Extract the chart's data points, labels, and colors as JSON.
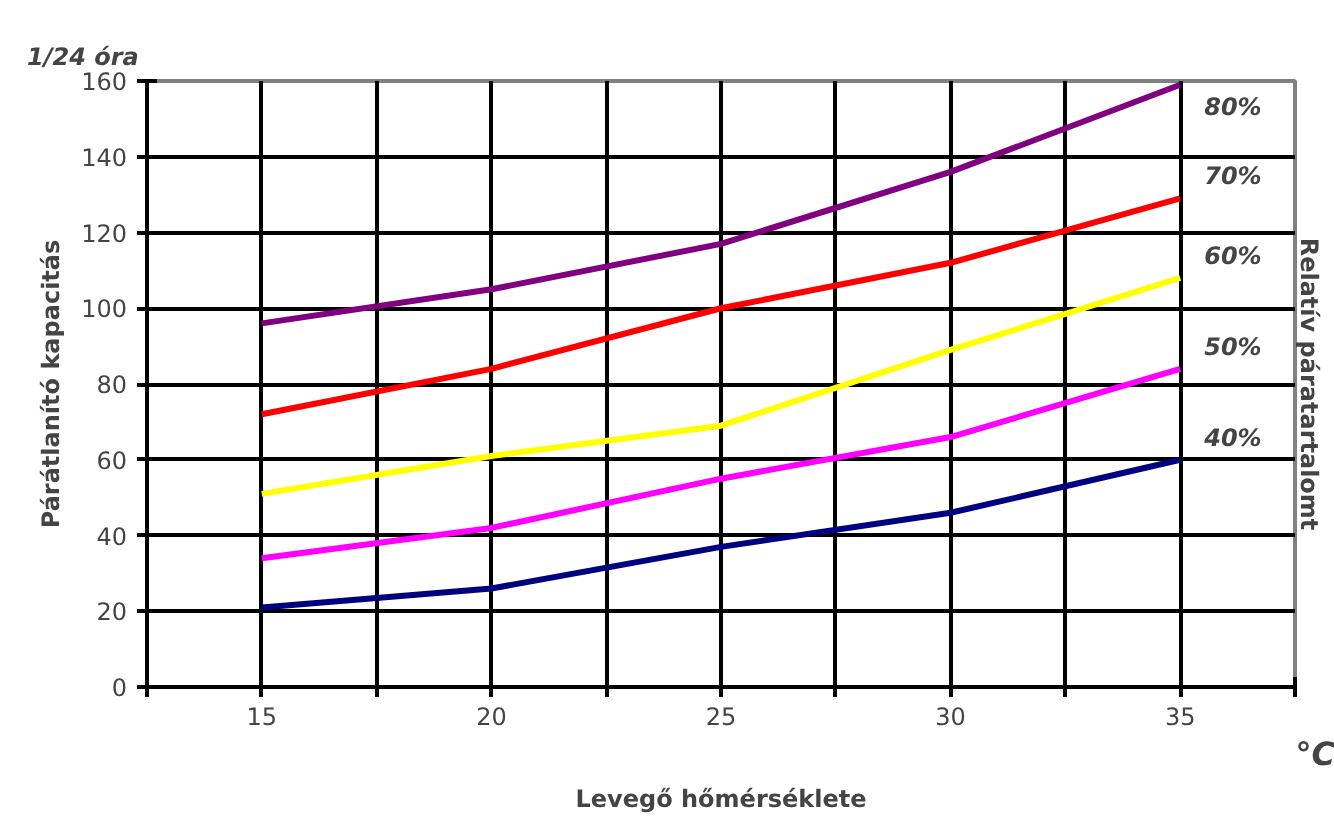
{
  "chart_data": {
    "type": "line",
    "xlabel": "Levegő hőmérséklete",
    "ylabel": "Párátlanító kapacitás",
    "legend_title": "Relatív páratartalomt",
    "annotations": [
      "1/24 óra",
      "°C"
    ],
    "x": [
      15,
      20,
      25,
      30,
      35
    ],
    "xlim": [
      12.5,
      37.5
    ],
    "xticks": [
      {
        "value": 12.5,
        "label": null
      },
      15,
      {
        "value": 17.5,
        "label": null
      },
      20,
      {
        "value": 22.5,
        "label": null
      },
      25,
      {
        "value": 27.5,
        "label": null
      },
      30,
      {
        "value": 32.5,
        "label": null
      },
      35,
      {
        "value": 37.5,
        "label": null
      }
    ],
    "ylim": [
      0,
      160
    ],
    "yticks": [
      0,
      20,
      40,
      60,
      80,
      100,
      120,
      140,
      160
    ],
    "grid": true,
    "line_style": "solid",
    "marker": "none",
    "series": [
      {
        "name": "80%",
        "color": "#800080",
        "values": [
          96,
          105,
          117,
          136,
          159
        ]
      },
      {
        "name": "70%",
        "color": "#ff0000",
        "values": [
          72,
          84,
          100,
          112,
          129
        ]
      },
      {
        "name": "60%",
        "color": "#ffff00",
        "values": [
          51,
          61,
          69,
          89,
          108
        ]
      },
      {
        "name": "50%",
        "color": "#ff00ff",
        "values": [
          34,
          42,
          55,
          66,
          84
        ]
      },
      {
        "name": "40%",
        "color": "#000080",
        "values": [
          21,
          26,
          37,
          46,
          60
        ]
      }
    ]
  }
}
